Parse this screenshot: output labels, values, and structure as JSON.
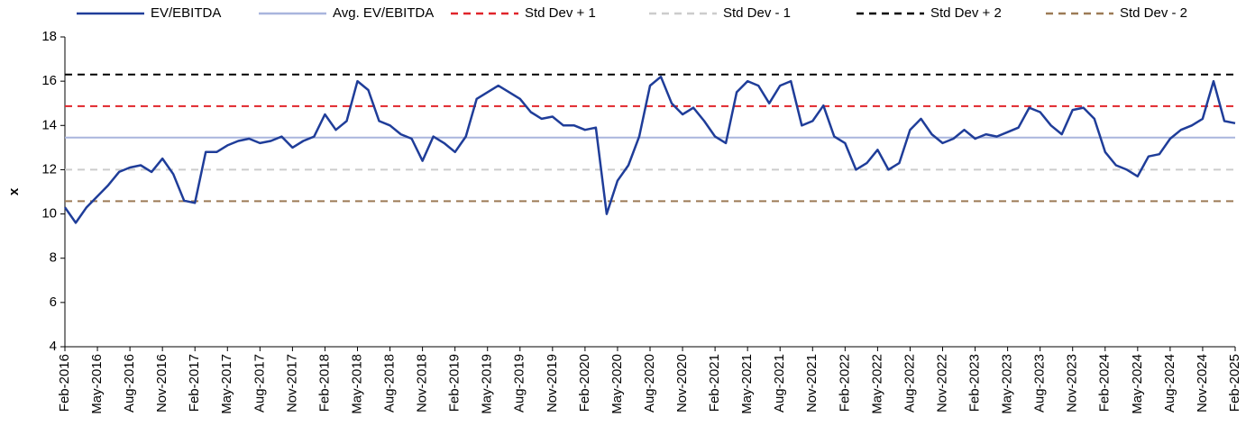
{
  "chart_data": {
    "type": "line",
    "y_label": "x",
    "categories": [
      "Feb-2016",
      null,
      null,
      "May-2016",
      null,
      null,
      "Aug-2016",
      null,
      null,
      "Nov-2016",
      null,
      null,
      "Feb-2017",
      null,
      null,
      "May-2017",
      null,
      null,
      "Aug-2017",
      null,
      null,
      "Nov-2017",
      null,
      null,
      "Feb-2018",
      null,
      null,
      "May-2018",
      null,
      null,
      "Aug-2018",
      null,
      null,
      "Nov-2018",
      null,
      null,
      "Feb-2019",
      null,
      null,
      "May-2019",
      null,
      null,
      "Aug-2019",
      null,
      null,
      "Nov-2019",
      null,
      null,
      "Feb-2020",
      null,
      null,
      "May-2020",
      null,
      null,
      "Aug-2020",
      null,
      null,
      "Nov-2020",
      null,
      null,
      "Feb-2021",
      null,
      null,
      "May-2021",
      null,
      null,
      "Aug-2021",
      null,
      null,
      "Nov-2021",
      null,
      null,
      "Feb-2022",
      null,
      null,
      "May-2022",
      null,
      null,
      "Aug-2022",
      null,
      null,
      "Nov-2022",
      null,
      null,
      "Feb-2023",
      null,
      null,
      "May-2023",
      null,
      null,
      "Aug-2023",
      null,
      null,
      "Nov-2023",
      null,
      null,
      "Feb-2024",
      null,
      null,
      "May-2024",
      null,
      null,
      "Aug-2024",
      null,
      null,
      "Nov-2024",
      null,
      null,
      "Feb-2025"
    ],
    "series": [
      {
        "name": "EV/EBITDA",
        "color": "#1f3d99",
        "values": [
          10.3,
          9.6,
          10.3,
          10.8,
          11.3,
          11.9,
          12.1,
          12.2,
          11.9,
          12.5,
          11.8,
          10.6,
          10.5,
          12.8,
          12.8,
          13.1,
          13.3,
          13.4,
          13.2,
          13.3,
          13.5,
          13.0,
          13.3,
          13.5,
          14.5,
          13.8,
          14.2,
          16.0,
          15.6,
          14.2,
          14.0,
          13.6,
          13.4,
          12.4,
          13.5,
          13.2,
          12.8,
          13.5,
          15.2,
          15.5,
          15.8,
          15.5,
          15.2,
          14.6,
          14.3,
          14.4,
          14.0,
          14.0,
          13.8,
          13.9,
          10.0,
          11.5,
          12.2,
          13.5,
          15.8,
          16.2,
          15.0,
          14.5,
          14.8,
          14.2,
          13.5,
          13.2,
          15.5,
          16.0,
          15.8,
          15.0,
          15.8,
          16.0,
          14.0,
          14.2,
          14.9,
          13.5,
          13.2,
          12.0,
          12.3,
          12.9,
          12.0,
          12.3,
          13.8,
          14.3,
          13.6,
          13.2,
          13.4,
          13.8,
          13.4,
          13.6,
          13.5,
          13.7,
          13.9,
          14.8,
          14.6,
          14.0,
          13.6,
          14.7,
          14.8,
          14.3,
          12.8,
          12.2,
          12.0,
          11.7,
          12.6,
          12.7,
          13.4,
          13.8,
          14.0,
          14.3,
          16.0,
          14.2,
          14.1
        ]
      }
    ],
    "hlines": [
      {
        "name": "Avg. EV/EBITDA",
        "color": "#a9b5dd",
        "value": 13.45,
        "dashed": false
      },
      {
        "name": "Std Dev + 1",
        "color": "#e0242a",
        "value": 14.87,
        "dashed": true
      },
      {
        "name": "Std Dev - 1",
        "color": "#cccccc",
        "value": 12.0,
        "dashed": true
      },
      {
        "name": "Std Dev + 2",
        "color": "#000000",
        "value": 16.3,
        "dashed": true
      },
      {
        "name": "Std Dev - 2",
        "color": "#9c7a56",
        "value": 10.58,
        "dashed": true
      }
    ],
    "ylim": [
      4,
      18
    ],
    "yticks": [
      4,
      6,
      8,
      10,
      12,
      14,
      16,
      18
    ],
    "grid": false,
    "legend": "top"
  }
}
